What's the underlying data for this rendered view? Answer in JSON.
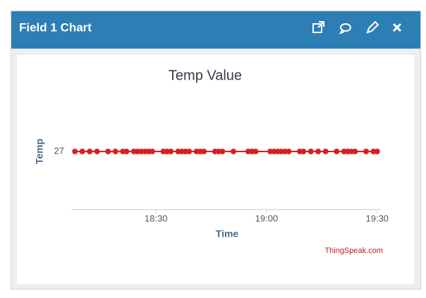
{
  "header": {
    "title": "Field 1 Chart"
  },
  "chart_data": {
    "type": "line",
    "title": "Temp Value",
    "x_label": "Time",
    "y_label": "Temp",
    "credit": "ThingSpeak.com",
    "x": [
      "18:08",
      "18:10",
      "18:12",
      "18:14",
      "18:17",
      "18:19",
      "18:21",
      "18:22",
      "18:24",
      "18:25",
      "18:26",
      "18:27",
      "18:28",
      "18:29",
      "18:32",
      "18:33",
      "18:34",
      "18:36",
      "18:37",
      "18:38",
      "18:39",
      "18:41",
      "18:42",
      "18:43",
      "18:46",
      "18:47",
      "18:48",
      "18:51",
      "18:55",
      "18:56",
      "18:57",
      "19:01",
      "19:02",
      "19:03",
      "19:04",
      "19:05",
      "19:06",
      "19:09",
      "19:10",
      "19:12",
      "19:14",
      "19:16",
      "19:19",
      "19:21",
      "19:22",
      "19:23",
      "19:24",
      "19:27",
      "19:29",
      "19:30"
    ],
    "series": [
      {
        "name": "Temp",
        "color": "#d62020",
        "values": [
          27,
          27,
          27,
          27,
          27,
          27,
          27,
          27,
          27,
          27,
          27,
          27,
          27,
          27,
          27,
          27,
          27,
          27,
          27,
          27,
          27,
          27,
          27,
          27,
          27,
          27,
          27,
          27,
          27,
          27,
          27,
          27,
          27,
          27,
          27,
          27,
          27,
          27,
          27,
          27,
          27,
          27,
          27,
          27,
          27,
          27,
          27,
          27,
          27,
          27
        ]
      }
    ],
    "xlim": [
      "18:07",
      "19:31"
    ],
    "xticks": [
      "18:30",
      "19:00",
      "19:30"
    ],
    "ylim": [
      26,
      28
    ],
    "yticks": [
      27
    ],
    "grid": false
  }
}
